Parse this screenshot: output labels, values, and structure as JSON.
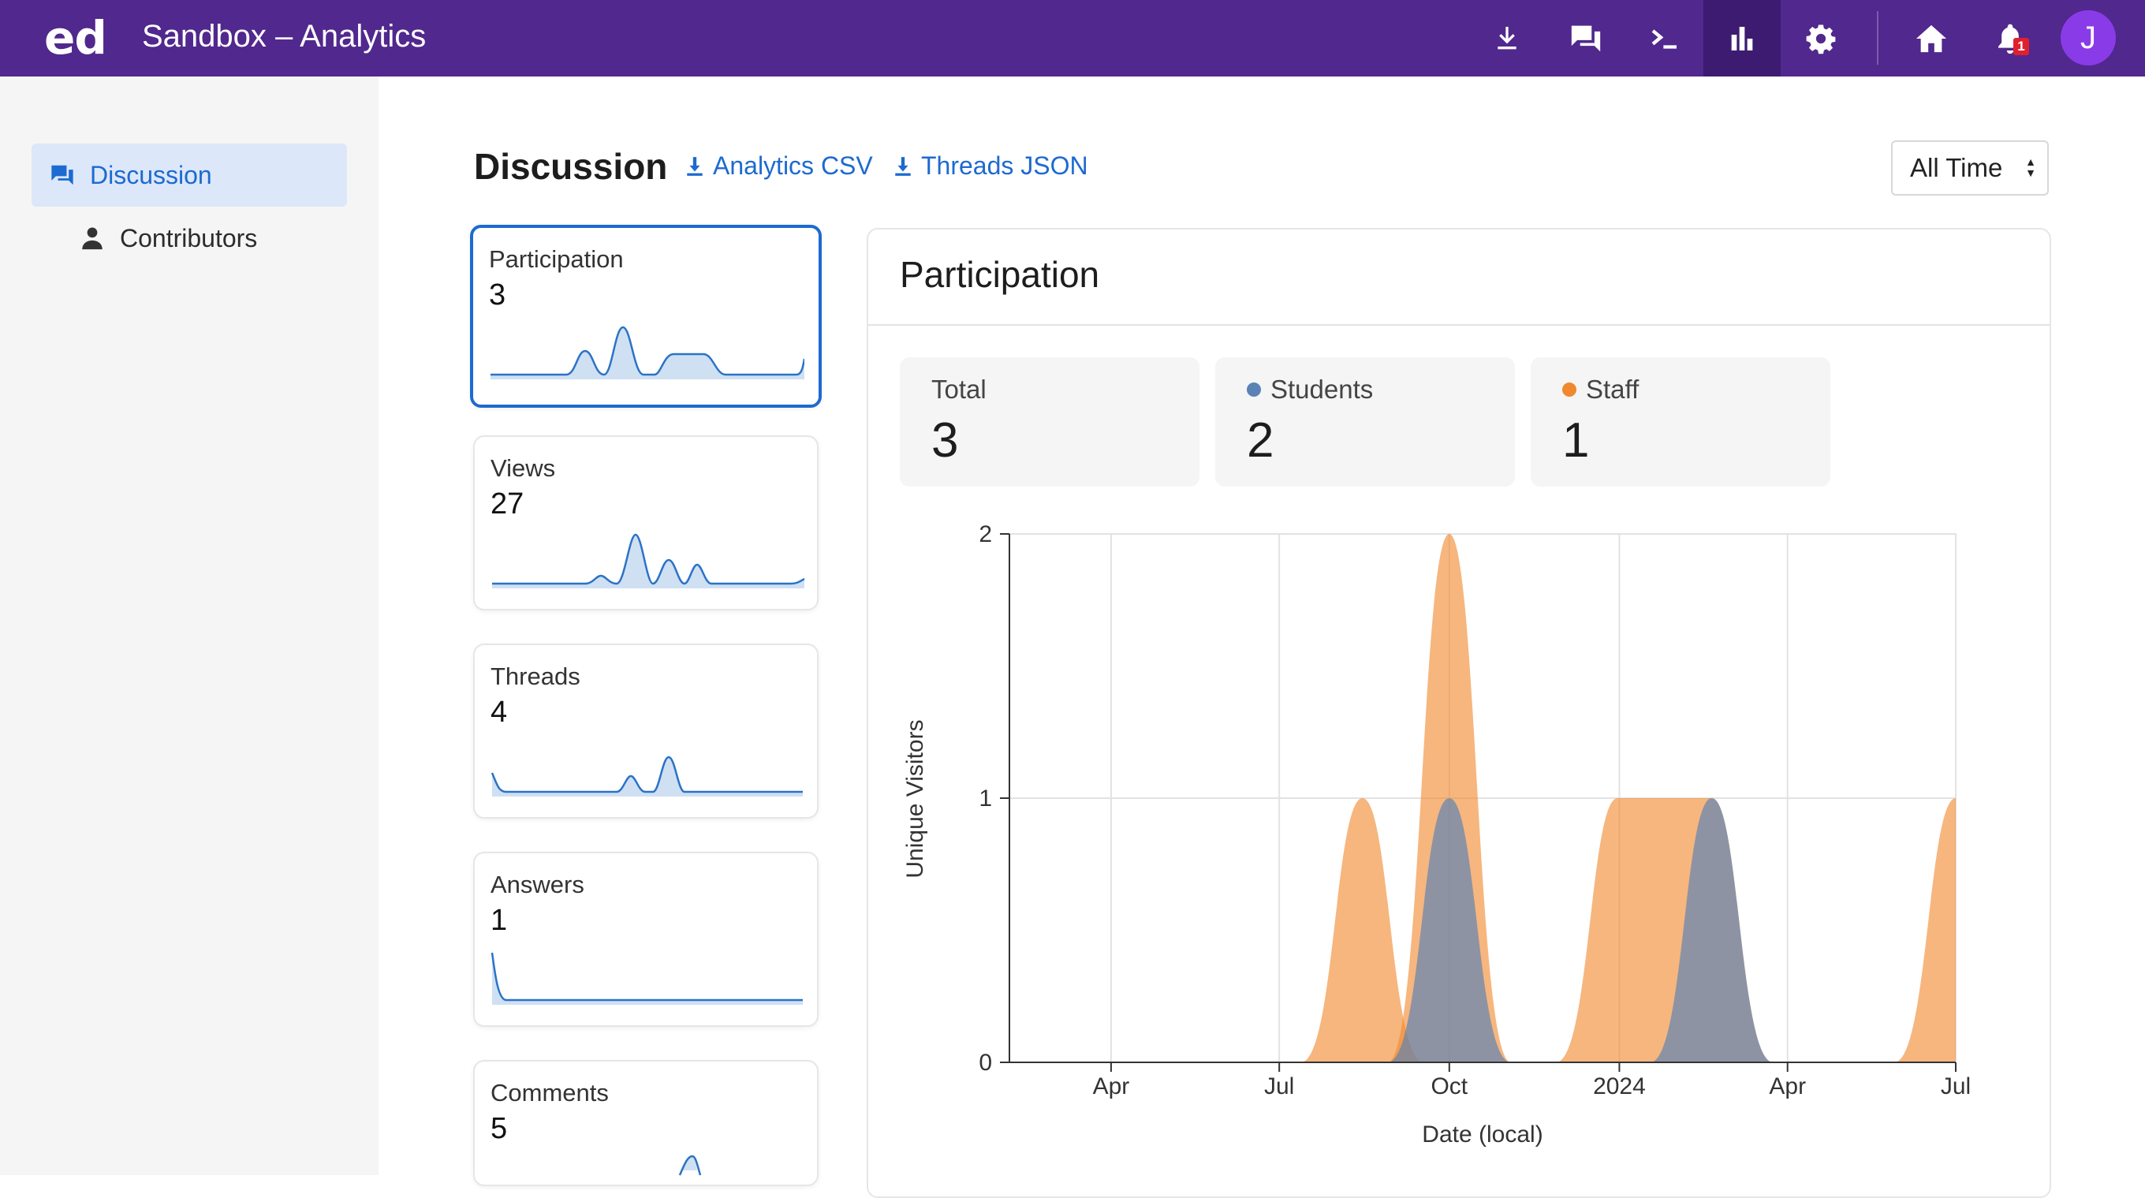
{
  "topbar": {
    "logo": "ed",
    "title": "Sandbox – Analytics",
    "notification_count": "1",
    "avatar_initial": "J",
    "icons": [
      "download-icon",
      "chat-icon",
      "terminal-icon",
      "analytics-icon",
      "settings-icon",
      "home-icon",
      "bell-icon"
    ]
  },
  "sidebar": {
    "items": [
      {
        "label": "Discussion",
        "icon": "chat-icon",
        "active": true
      },
      {
        "label": "Contributors",
        "icon": "person-icon",
        "active": false
      }
    ]
  },
  "header": {
    "title": "Discussion",
    "links": [
      "Analytics CSV",
      "Threads JSON"
    ],
    "time_filter": "All Time"
  },
  "cards": [
    {
      "label": "Participation",
      "value": "3",
      "selected": true
    },
    {
      "label": "Views",
      "value": "27",
      "selected": false
    },
    {
      "label": "Threads",
      "value": "4",
      "selected": false
    },
    {
      "label": "Answers",
      "value": "1",
      "selected": false
    },
    {
      "label": "Comments",
      "value": "5",
      "selected": false
    }
  ],
  "panel": {
    "title": "Participation",
    "stats": [
      {
        "label": "Total",
        "value": "3",
        "color": ""
      },
      {
        "label": "Students",
        "value": "2",
        "color": "#5b82b5"
      },
      {
        "label": "Staff",
        "value": "1",
        "color": "#f0892e"
      }
    ]
  },
  "colors": {
    "topbar": "#51288d",
    "accent": "#1d6ad0",
    "students": "#5b82b5",
    "staff": "#f0892e"
  },
  "chart_data": {
    "type": "area",
    "xlabel": "Date (local)",
    "ylabel": "Unique Visitors",
    "x_ticks": [
      "Apr",
      "Jul",
      "Oct",
      "2024",
      "Apr",
      "Jul"
    ],
    "y_ticks": [
      "0",
      "1",
      "2"
    ],
    "ylim": [
      0,
      2
    ],
    "grid": true,
    "series": [
      {
        "name": "Staff",
        "color": "#f0892e",
        "points": [
          [
            "2023-08-15",
            1
          ],
          [
            "2023-10-01",
            2
          ],
          [
            "2023-12-31",
            1
          ],
          [
            "2024-01-31",
            1
          ],
          [
            "2024-02-20",
            1
          ],
          [
            "2024-07-01",
            1
          ]
        ]
      },
      {
        "name": "Students",
        "color": "#5b82b5",
        "points": [
          [
            "2023-10-01",
            1
          ],
          [
            "2024-02-20",
            1
          ]
        ]
      }
    ]
  }
}
